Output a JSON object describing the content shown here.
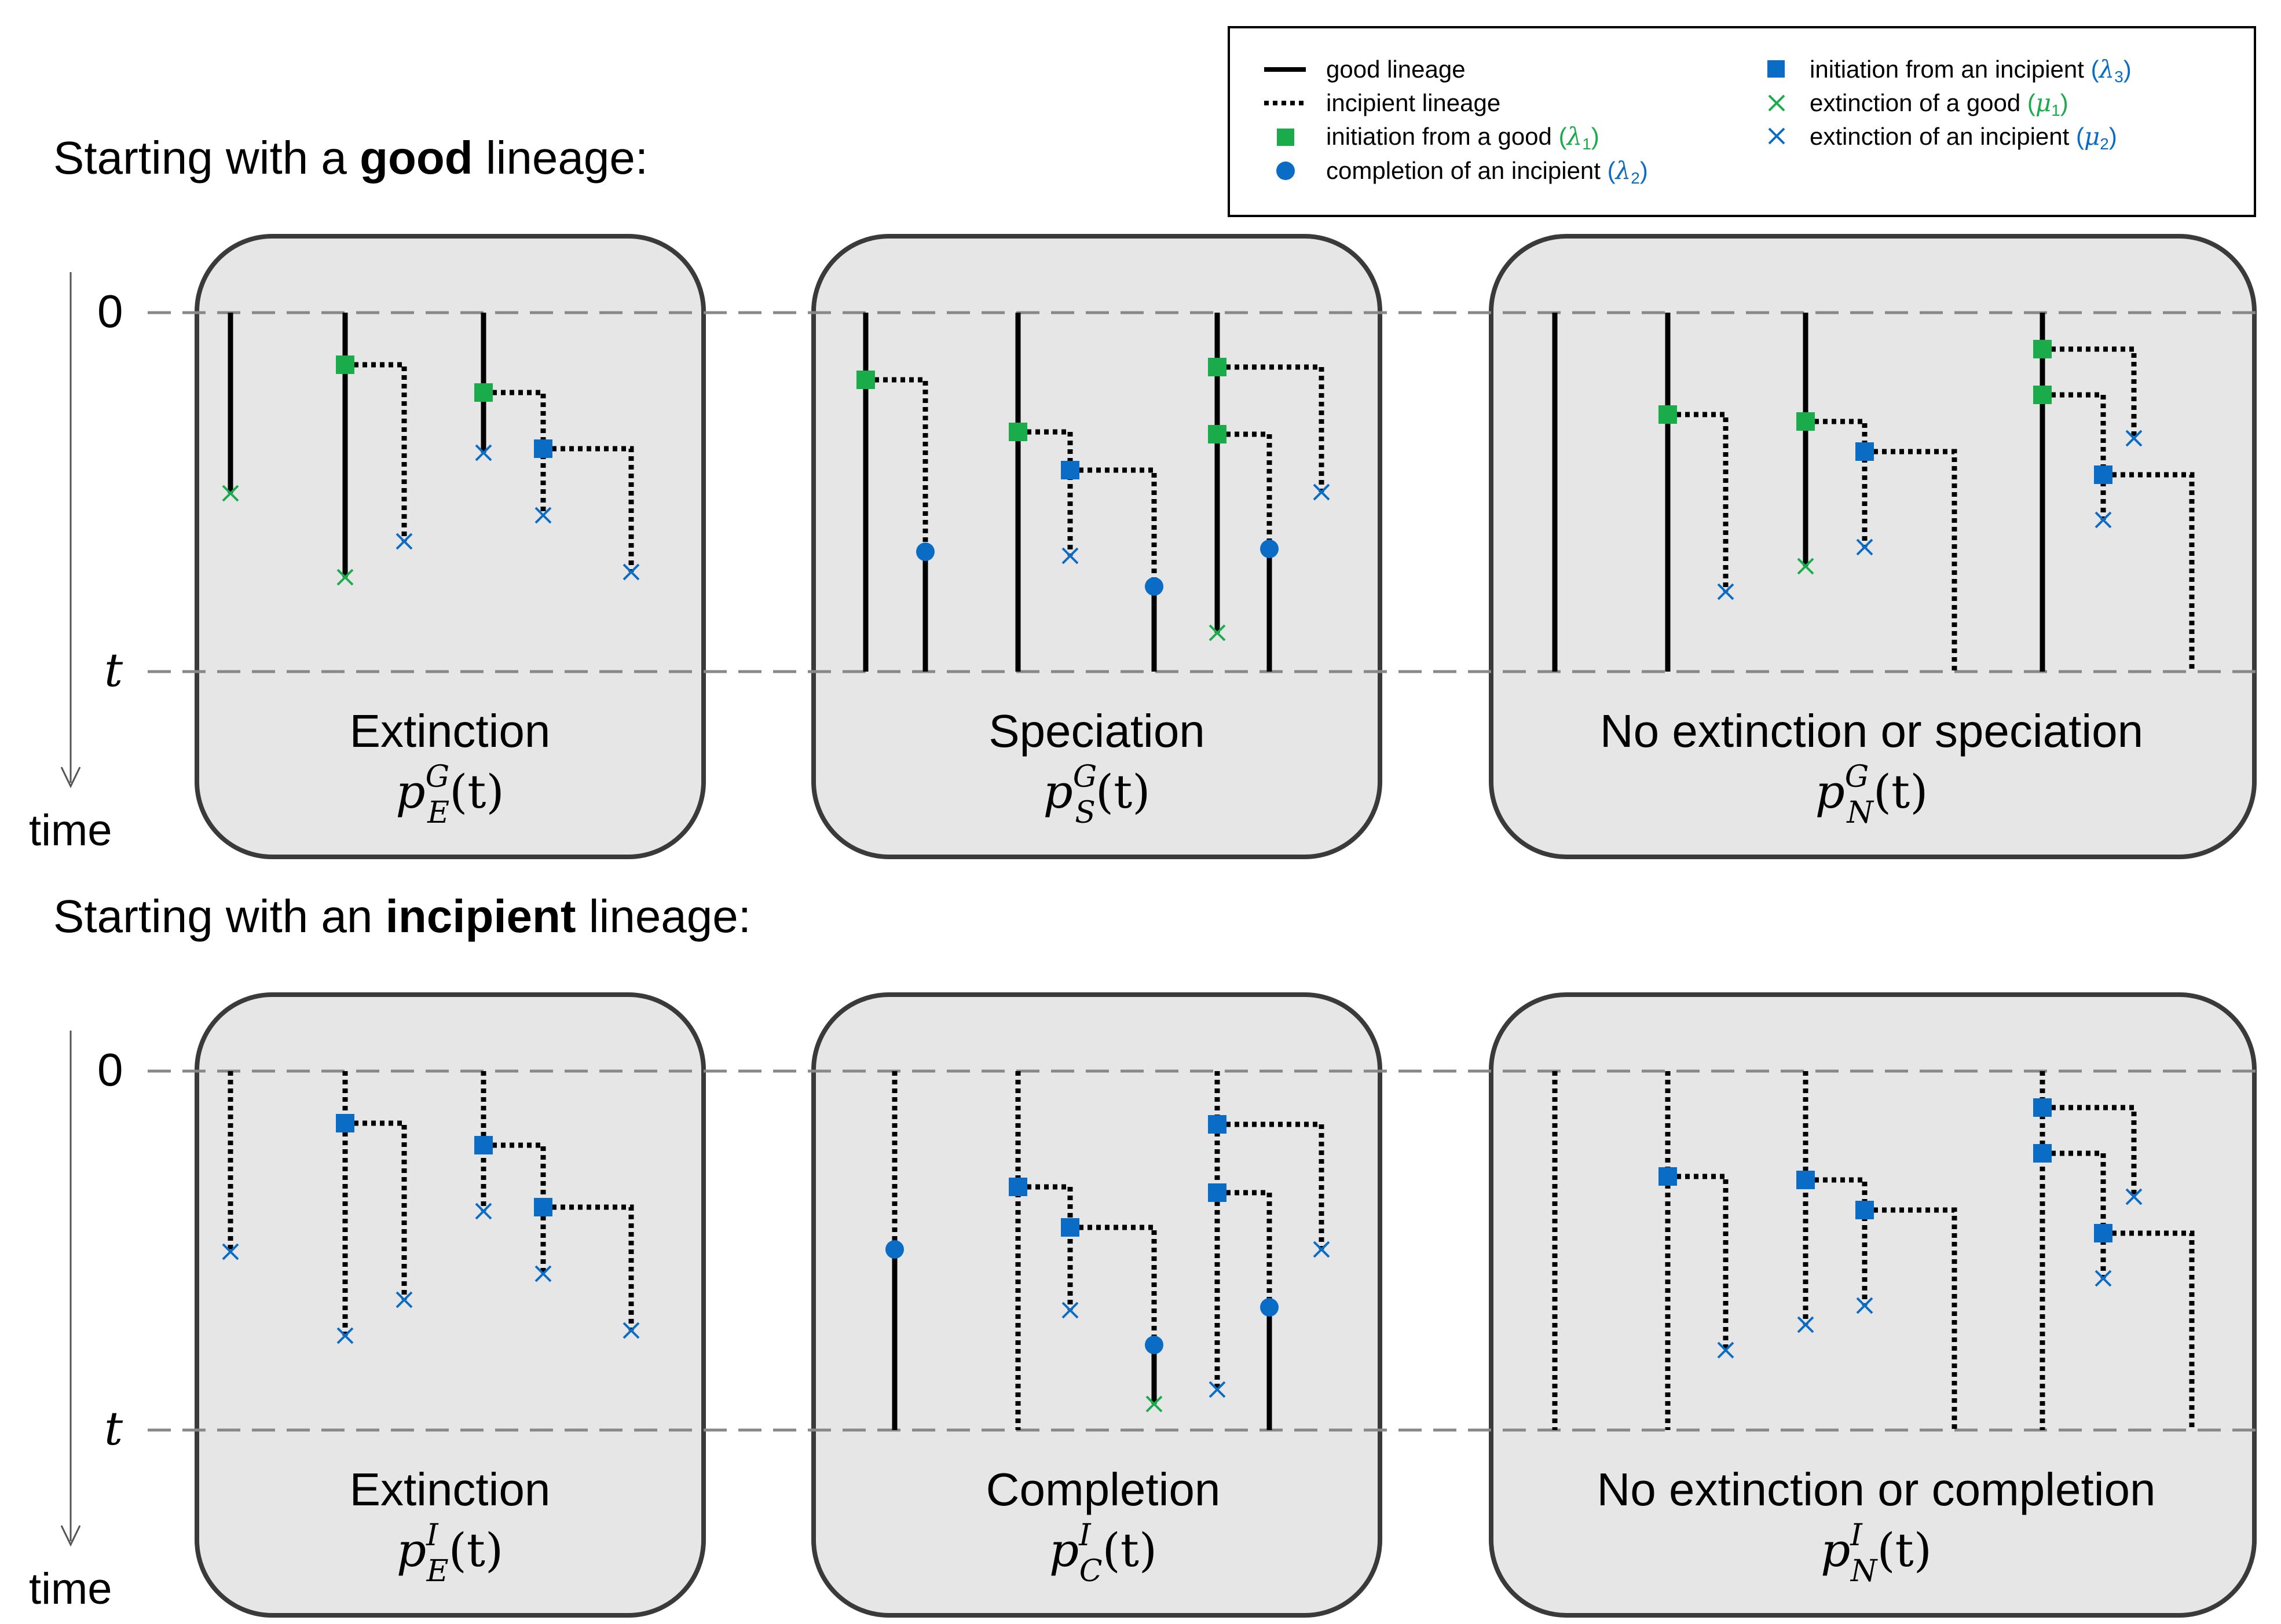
{
  "colors": {
    "good_initiation": "#1aac4a",
    "incipient": "#0a6cc4",
    "lineage": "#000000",
    "panel_fill": "#e6e6e6",
    "panel_border": "#3a3a3a",
    "guide": "#888888"
  },
  "legend": {
    "items": [
      {
        "key": "good",
        "label": "good lineage",
        "symbol": ""
      },
      {
        "key": "incipient",
        "label": "incipient lineage",
        "symbol": ""
      },
      {
        "key": "init_good",
        "label": "initiation from a good",
        "symbol": "λ",
        "sub": "1"
      },
      {
        "key": "completion",
        "label": "completion of an incipient",
        "symbol": "λ",
        "sub": "2"
      },
      {
        "key": "init_incipient",
        "label": "initiation from an incipient",
        "symbol": "λ",
        "sub": "3"
      },
      {
        "key": "ext_good",
        "label": "extinction of a good",
        "symbol": "μ",
        "sub": "1"
      },
      {
        "key": "ext_incipient",
        "label": "extinction of an incipient",
        "symbol": "μ",
        "sub": "2"
      }
    ]
  },
  "axis": {
    "zero": "0",
    "t": "t",
    "time": "time"
  },
  "sections": [
    {
      "title_pre": "Starting with a ",
      "title_bold": "good",
      "title_post": " lineage:",
      "panels": [
        {
          "label": "Extinction",
          "formula_sup": "G",
          "formula_sub": "E"
        },
        {
          "label": "Speciation",
          "formula_sup": "G",
          "formula_sub": "S"
        },
        {
          "label": "No extinction or speciation",
          "formula_sup": "G",
          "formula_sub": "N"
        }
      ]
    },
    {
      "title_pre": "Starting with an ",
      "title_bold": "incipient",
      "title_post": " lineage:",
      "panels": [
        {
          "label": "Extinction",
          "formula_sup": "I",
          "formula_sub": "E"
        },
        {
          "label": "Completion",
          "formula_sup": "I",
          "formula_sub": "C"
        },
        {
          "label": "No extinction or completion",
          "formula_sup": "I",
          "formula_sub": "N"
        }
      ]
    }
  ],
  "formula": {
    "p": "p",
    "arg": "(t)"
  }
}
